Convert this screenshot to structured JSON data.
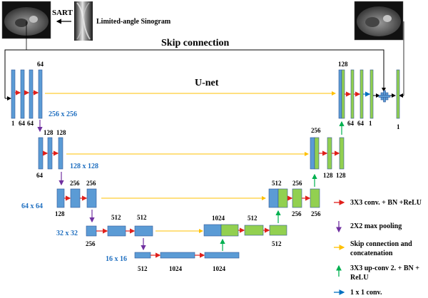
{
  "header": {
    "sart_label": "SART",
    "sinogram_label": "Limited-angle Sinogram",
    "skip_title": "Skip connection",
    "unet_title": "U-net"
  },
  "level1": {
    "ch_top": "64",
    "ch_bottom": [
      "1",
      "64",
      "64"
    ],
    "size": "256 x 256"
  },
  "level2": {
    "ch_top": [
      "128",
      "128"
    ],
    "ch_bottom": "64",
    "size": "128 x 128"
  },
  "level3": {
    "ch_top": [
      "256",
      "256"
    ],
    "ch_bottom": "128",
    "size": "64 x 64"
  },
  "level4": {
    "ch_top": [
      "512",
      "512"
    ],
    "ch_bottom": "256",
    "size": "32 x 32"
  },
  "level5": {
    "ch_bottom": [
      "512",
      "1024",
      "1024"
    ],
    "size": "16 x 16"
  },
  "decoder": {
    "d4": {
      "ch_top": [
        "1024",
        "512"
      ],
      "ch_bottom": "512"
    },
    "d3": {
      "ch_top": [
        "512",
        "256"
      ],
      "ch_bottom": [
        "256",
        "256"
      ]
    },
    "d2": {
      "ch_top": "256",
      "ch_bottom": [
        "128",
        "128"
      ]
    },
    "d1": {
      "ch_top": "128",
      "ch_bottom": [
        "64",
        "64",
        "1"
      ],
      "final": "1"
    }
  },
  "legend": [
    {
      "text": [
        "3X3 conv. + BN +ReLU"
      ],
      "color": "#e0201b",
      "icon": "arrow-right-icon"
    },
    {
      "text": [
        "2X2 max pooling"
      ],
      "color": "#7030a0",
      "icon": "arrow-down-icon"
    },
    {
      "text": [
        "Skip connection and",
        "concatenation"
      ],
      "color": "#ffc000",
      "icon": "arrow-right-icon"
    },
    {
      "text": [
        "3X3 up-conv 2. + BN +",
        "ReLU"
      ],
      "color": "#00b050",
      "icon": "arrow-up-icon"
    },
    {
      "text": [
        "1 x 1 conv."
      ],
      "color": "#0070c0",
      "icon": "arrow-right-icon"
    }
  ],
  "colors": {
    "encoder_block": "#5b9bd5",
    "decoder_block": "#92d050",
    "block_border": "#2f5597",
    "size_label": "#1f6fc0",
    "plus_node": "#5b9bd5"
  }
}
